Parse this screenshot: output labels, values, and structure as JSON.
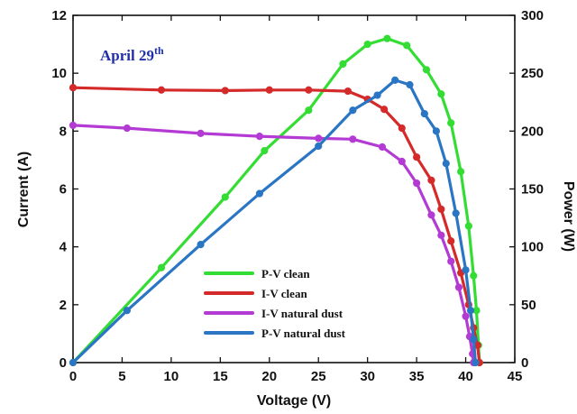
{
  "chart_data": {
    "type": "line",
    "title": "",
    "annotation": {
      "text": "April 29",
      "superscript": "th"
    },
    "xlabel": "Voltage (V)",
    "ylabel_left": "Current (A)",
    "ylabel_right": "Power (W)",
    "xlim": [
      0,
      45
    ],
    "ylim_left": [
      0,
      12
    ],
    "ylim_right": [
      0,
      300
    ],
    "xticks": [
      0,
      5,
      10,
      15,
      20,
      25,
      30,
      35,
      40,
      45
    ],
    "yticks_left": [
      0,
      2,
      4,
      6,
      8,
      10,
      12
    ],
    "yticks_right": [
      0,
      50,
      100,
      150,
      200,
      250,
      300
    ],
    "legend_position": "lower-center",
    "grid": false,
    "series": [
      {
        "name": "P-V clean",
        "axis": "right",
        "color": "#33dd33",
        "points": [
          [
            0,
            0
          ],
          [
            9,
            82
          ],
          [
            15.5,
            143
          ],
          [
            19.5,
            183
          ],
          [
            24,
            218
          ],
          [
            27.5,
            258
          ],
          [
            30,
            275
          ],
          [
            32,
            280
          ],
          [
            34,
            274
          ],
          [
            36,
            253
          ],
          [
            37.5,
            232
          ],
          [
            38.5,
            207
          ],
          [
            39.5,
            165
          ],
          [
            40.3,
            118
          ],
          [
            40.8,
            75
          ],
          [
            41.1,
            45
          ],
          [
            41.3,
            15
          ],
          [
            41.4,
            0
          ]
        ]
      },
      {
        "name": "I-V clean",
        "axis": "left",
        "color": "#d42a2a",
        "points": [
          [
            0,
            9.5
          ],
          [
            9,
            9.42
          ],
          [
            15.5,
            9.4
          ],
          [
            20,
            9.42
          ],
          [
            24,
            9.42
          ],
          [
            28,
            9.38
          ],
          [
            30,
            9.1
          ],
          [
            31.7,
            8.75
          ],
          [
            33.5,
            8.1
          ],
          [
            35,
            7.1
          ],
          [
            36.5,
            6.3
          ],
          [
            37.5,
            5.3
          ],
          [
            38.5,
            4.2
          ],
          [
            39.5,
            3.1
          ],
          [
            40.3,
            2.0
          ],
          [
            40.8,
            1.2
          ],
          [
            41.2,
            0.6
          ],
          [
            41.4,
            0
          ]
        ]
      },
      {
        "name": "I-V natural dust",
        "axis": "left",
        "color": "#b43ad4",
        "points": [
          [
            0,
            8.2
          ],
          [
            5.5,
            8.1
          ],
          [
            13,
            7.92
          ],
          [
            19,
            7.82
          ],
          [
            25,
            7.75
          ],
          [
            28.5,
            7.72
          ],
          [
            31.5,
            7.45
          ],
          [
            33.5,
            6.95
          ],
          [
            35,
            6.2
          ],
          [
            36.5,
            5.1
          ],
          [
            37.5,
            4.4
          ],
          [
            38.5,
            3.5
          ],
          [
            39.3,
            2.6
          ],
          [
            40,
            1.6
          ],
          [
            40.4,
            0.9
          ],
          [
            40.7,
            0.3
          ],
          [
            40.8,
            0
          ]
        ]
      },
      {
        "name": "P-V natural dust",
        "axis": "right",
        "color": "#2a76c4",
        "points": [
          [
            0,
            0
          ],
          [
            5.5,
            45
          ],
          [
            13,
            102
          ],
          [
            19,
            146
          ],
          [
            25,
            187
          ],
          [
            28.5,
            218
          ],
          [
            31,
            231
          ],
          [
            32.8,
            244
          ],
          [
            34.3,
            240
          ],
          [
            35.8,
            215
          ],
          [
            37,
            200
          ],
          [
            38,
            172
          ],
          [
            39,
            129
          ],
          [
            40,
            80
          ],
          [
            40.5,
            45
          ],
          [
            40.8,
            20
          ],
          [
            41,
            0
          ]
        ]
      }
    ]
  }
}
